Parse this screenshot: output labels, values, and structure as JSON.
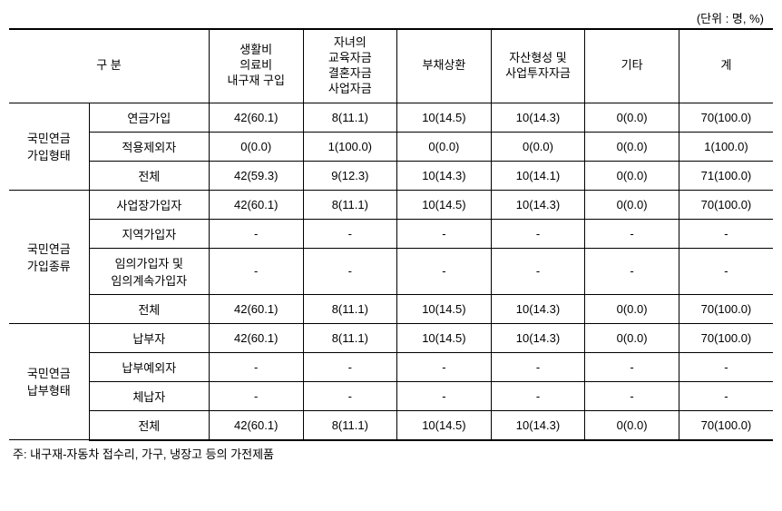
{
  "unit_label": "(단위 : 명, %)",
  "header": {
    "category": "구 분",
    "col1": "생활비\n의료비\n내구재 구입",
    "col2": "자녀의\n교육자금\n결혼자금\n사업자금",
    "col3": "부채상환",
    "col4": "자산형성 및\n사업투자자금",
    "col5": "기타",
    "col6": "계"
  },
  "groups": [
    {
      "name": "국민연금\n가입형태",
      "rows": [
        {
          "label": "연금가입",
          "cells": [
            "42(60.1)",
            "8(11.1)",
            "10(14.5)",
            "10(14.3)",
            "0(0.0)",
            "70(100.0)"
          ]
        },
        {
          "label": "적용제외자",
          "cells": [
            "0(0.0)",
            "1(100.0)",
            "0(0.0)",
            "0(0.0)",
            "0(0.0)",
            "1(100.0)"
          ]
        },
        {
          "label": "전체",
          "cells": [
            "42(59.3)",
            "9(12.3)",
            "10(14.3)",
            "10(14.1)",
            "0(0.0)",
            "71(100.0)"
          ]
        }
      ]
    },
    {
      "name": "국민연금\n가입종류",
      "rows": [
        {
          "label": "사업장가입자",
          "cells": [
            "42(60.1)",
            "8(11.1)",
            "10(14.5)",
            "10(14.3)",
            "0(0.0)",
            "70(100.0)"
          ]
        },
        {
          "label": "지역가입자",
          "cells": [
            "-",
            "-",
            "-",
            "-",
            "-",
            "-"
          ]
        },
        {
          "label": "임의가입자 및\n임의계속가입자",
          "cells": [
            "-",
            "-",
            "-",
            "-",
            "-",
            "-"
          ]
        },
        {
          "label": "전체",
          "cells": [
            "42(60.1)",
            "8(11.1)",
            "10(14.5)",
            "10(14.3)",
            "0(0.0)",
            "70(100.0)"
          ]
        }
      ]
    },
    {
      "name": "국민연금\n납부형태",
      "rows": [
        {
          "label": "납부자",
          "cells": [
            "42(60.1)",
            "8(11.1)",
            "10(14.5)",
            "10(14.3)",
            "0(0.0)",
            "70(100.0)"
          ]
        },
        {
          "label": "납부예외자",
          "cells": [
            "-",
            "-",
            "-",
            "-",
            "-",
            "-"
          ]
        },
        {
          "label": "체납자",
          "cells": [
            "-",
            "-",
            "-",
            "-",
            "-",
            "-"
          ]
        },
        {
          "label": "전체",
          "cells": [
            "42(60.1)",
            "8(11.1)",
            "10(14.5)",
            "10(14.3)",
            "0(0.0)",
            "70(100.0)"
          ]
        }
      ]
    }
  ],
  "footnote": "주: 내구재-자동차 접수리, 가구, 냉장고 등의 가전제품",
  "style": {
    "font_size_body": 13,
    "font_size_note": 13,
    "border_color": "#000000",
    "background": "#ffffff",
    "col_widths": {
      "cat1": 80,
      "cat2": 120,
      "data": 94
    }
  }
}
